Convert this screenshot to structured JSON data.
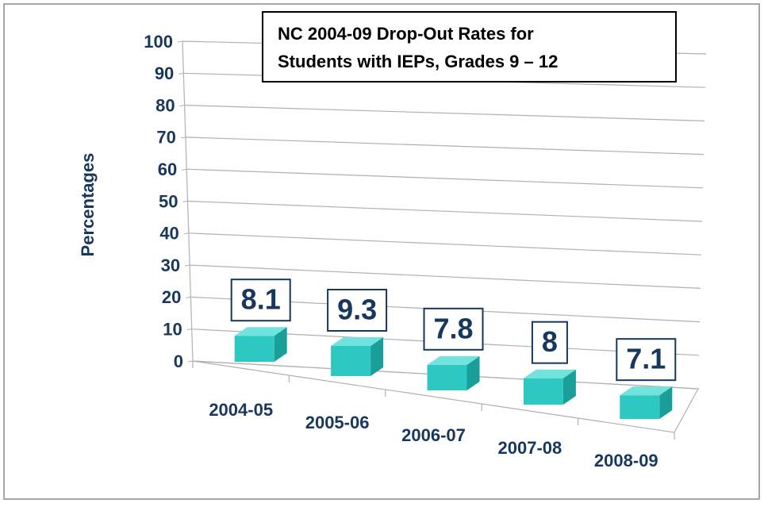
{
  "chart_data": {
    "type": "bar3d",
    "title": [
      "NC 2004-09 Drop-Out Rates for",
      "Students with IEPs, Grades 9 – 12"
    ],
    "y_label": "Percentages",
    "categories": [
      "2004-05",
      "2005-06",
      "2006-07",
      "2007-08",
      "2008-09"
    ],
    "values": [
      8.1,
      9.3,
      7.8,
      8,
      7.1
    ],
    "color": "#2ec8c2",
    "ylim": [
      0,
      100
    ],
    "yticks": [
      0,
      10,
      20,
      30,
      40,
      50,
      60,
      70,
      80,
      90,
      100
    ],
    "grid": true
  }
}
